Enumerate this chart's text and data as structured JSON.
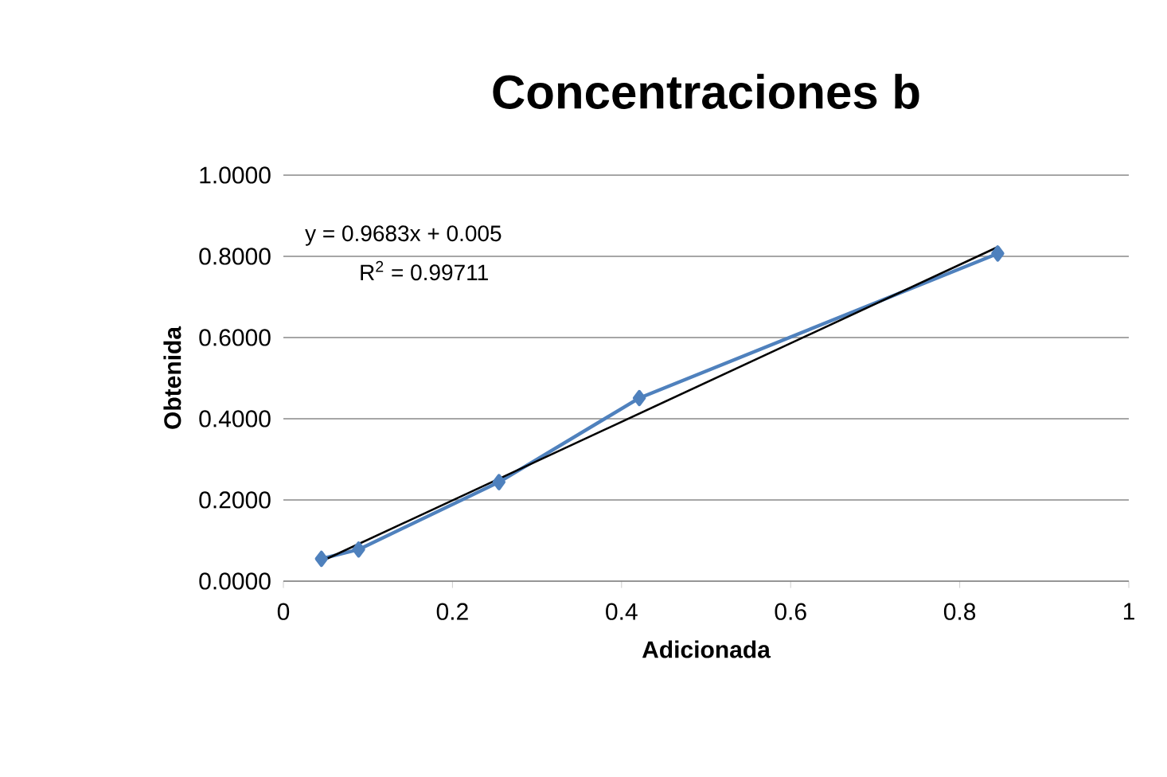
{
  "chart_data": {
    "type": "line",
    "title": "Concentraciones b",
    "xlabel": "Adicionada",
    "ylabel": "Obtenida",
    "annotations": [
      "y = 0.9683x + 0.005",
      "R$^{2}$ = 0.99711"
    ],
    "series": [
      {
        "color": "#4f81bd",
        "x": [
          0.045,
          0.089,
          0.255,
          0.421,
          0.845
        ],
        "values": [
          0.055,
          0.078,
          0.244,
          0.451,
          0.807
        ],
        "marker": "diamond"
      },
      {
        "type": "line",
        "color": "#000000",
        "x": [
          0.045,
          0.845
        ],
        "values": [
          0.049,
          0.823
        ],
        "marker": "none"
      }
    ],
    "xlim": [
      0,
      1
    ],
    "xticks": [
      0,
      0.2,
      0.4,
      0.6,
      0.8,
      1
    ],
    "ylim": [
      0,
      1
    ],
    "yticks": [
      {
        "value": 0,
        "label": "0.0000"
      },
      {
        "value": 0.2,
        "label": "0.2000"
      },
      {
        "value": 0.4,
        "label": "0.4000"
      },
      {
        "value": 0.6,
        "label": "0.6000"
      },
      {
        "value": 0.8,
        "label": "0.8000"
      },
      {
        "value": 1,
        "label": "1.0000"
      }
    ],
    "grid": "y"
  }
}
